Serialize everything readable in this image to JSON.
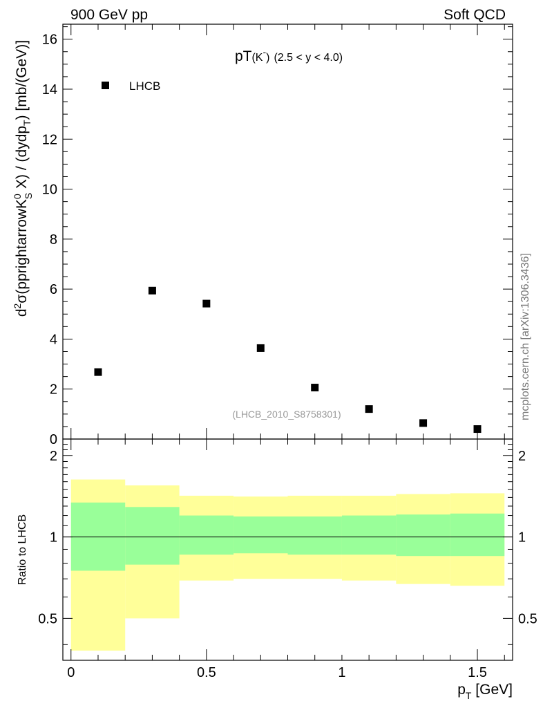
{
  "header": {
    "left_label": "900 GeV pp",
    "right_label": "Soft QCD"
  },
  "side_label": "mcplots.cern.ch [arXiv:1306.3436]",
  "colors": {
    "band_outer": "#ffff99",
    "band_inner": "#99ff99",
    "marker": "#000000",
    "source_text": "#999999"
  },
  "chart_data": [
    {
      "type": "scatter",
      "title": "pT(K<sup>-</sup>) (2.5 < y < 4.0)",
      "title_main": "pT",
      "title_part": "(K",
      "title_sup": "-",
      "title_close": ")",
      "title_range": "(2.5 < y < 4.0)",
      "ylabel": "d²σ(pprightarrowK⁰S X) / (dydpT) [mb/(GeV)]",
      "ylabel_parts": {
        "a": "d",
        "a_sup": "2",
        "b": "σ(pprightarrowK",
        "b_sup": "0",
        "b_sub": "S",
        "c": " X) / (dydp",
        "c_sub": "T",
        "d": ") [mb/(GeV)]"
      },
      "xlim": [
        -0.03,
        1.63
      ],
      "ylim": [
        0,
        16.6
      ],
      "yticks": [
        0,
        2,
        4,
        6,
        8,
        10,
        12,
        14,
        16
      ],
      "yticks_labels": [
        "0",
        "2",
        "4",
        "6",
        "8",
        "10",
        "12",
        "14",
        "16"
      ],
      "legend": {
        "position": "top-left",
        "label": "LHCB"
      },
      "source": "(LHCB_2010_S8758301)",
      "series": [
        {
          "name": "LHCB",
          "x": [
            0.1,
            0.3,
            0.5,
            0.7,
            0.9,
            1.1,
            1.3,
            1.5
          ],
          "y": [
            2.68,
            5.94,
            5.42,
            3.64,
            2.06,
            1.2,
            0.64,
            0.4
          ]
        }
      ]
    },
    {
      "type": "area",
      "ylabel": "Ratio to LHCB",
      "xlabel_main": "p",
      "xlabel_sub": "T",
      "xlabel_unit": " [GeV]",
      "xlim": [
        -0.03,
        1.63
      ],
      "ylim": [
        0.35,
        2.3
      ],
      "yscale": "log",
      "yticks": [
        0.5,
        1,
        2
      ],
      "yticks_labels": [
        "0.5",
        "1",
        "2"
      ],
      "xticks": [
        0,
        0.5,
        1,
        1.5
      ],
      "xticks_labels": [
        "0",
        "0.5",
        "1",
        "1.5"
      ],
      "reference_line": 1,
      "bins": [
        {
          "lo": 0.0,
          "hi": 0.2,
          "inner": [
            0.75,
            1.34
          ],
          "outer": [
            0.38,
            1.63
          ]
        },
        {
          "lo": 0.2,
          "hi": 0.4,
          "inner": [
            0.79,
            1.29
          ],
          "outer": [
            0.5,
            1.55
          ]
        },
        {
          "lo": 0.4,
          "hi": 0.6,
          "inner": [
            0.86,
            1.2
          ],
          "outer": [
            0.69,
            1.42
          ]
        },
        {
          "lo": 0.6,
          "hi": 0.8,
          "inner": [
            0.87,
            1.19
          ],
          "outer": [
            0.7,
            1.41
          ]
        },
        {
          "lo": 0.8,
          "hi": 1.0,
          "inner": [
            0.86,
            1.19
          ],
          "outer": [
            0.7,
            1.42
          ]
        },
        {
          "lo": 1.0,
          "hi": 1.2,
          "inner": [
            0.86,
            1.2
          ],
          "outer": [
            0.69,
            1.42
          ]
        },
        {
          "lo": 1.2,
          "hi": 1.4,
          "inner": [
            0.85,
            1.21
          ],
          "outer": [
            0.67,
            1.44
          ]
        },
        {
          "lo": 1.4,
          "hi": 1.6,
          "inner": [
            0.85,
            1.22
          ],
          "outer": [
            0.66,
            1.45
          ]
        }
      ]
    }
  ]
}
